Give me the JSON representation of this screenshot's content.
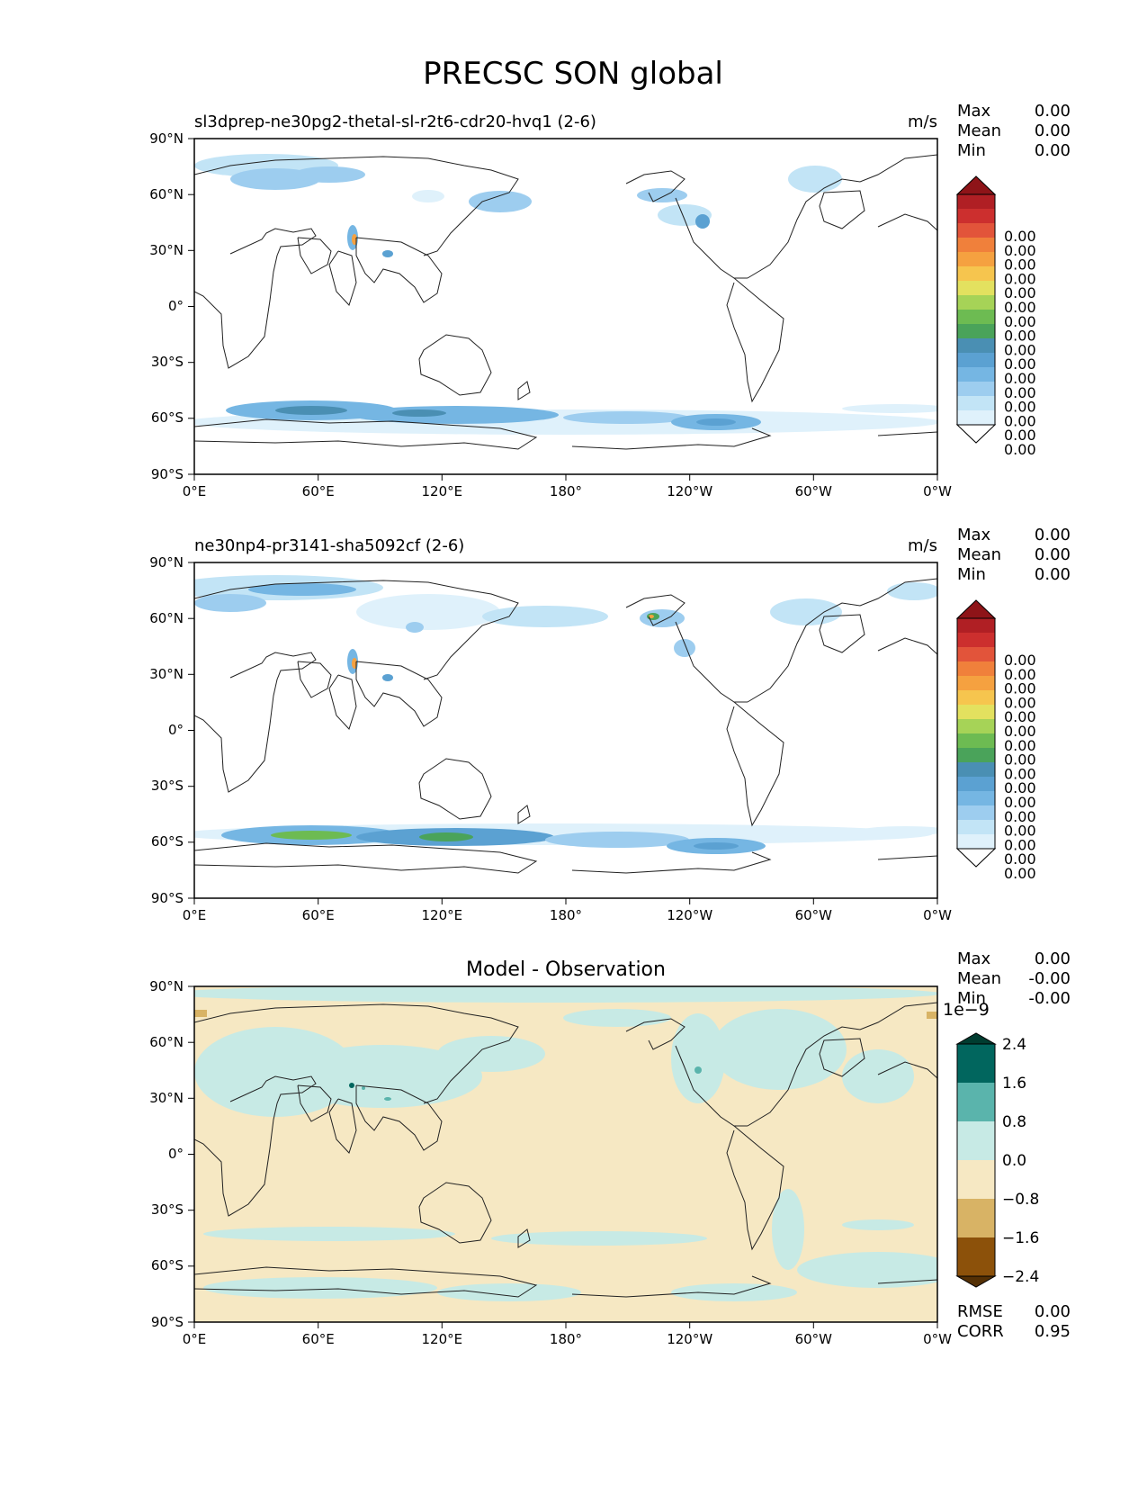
{
  "figure": {
    "title": "PRECSC SON global"
  },
  "axes": {
    "y_ticks": [
      "90°N",
      "60°N",
      "30°N",
      "0°",
      "30°S",
      "60°S",
      "90°S"
    ],
    "x_ticks": [
      "0°E",
      "60°E",
      "120°E",
      "180°",
      "120°W",
      "60°W",
      "0°W"
    ]
  },
  "panels": [
    {
      "id": "test",
      "left_title": "sl3dprep-ne30pg2-thetal-sl-r2t6-cdr20-hvq1 (2-6)",
      "center_title": "",
      "units": "m/s",
      "stats": [
        {
          "label": "Max",
          "value": "0.00"
        },
        {
          "label": "Mean",
          "value": "0.00"
        },
        {
          "label": "Min",
          "value": "0.00"
        }
      ],
      "colorbar": {
        "labels": [
          "0.00",
          "0.00",
          "0.00",
          "0.00",
          "0.00",
          "0.00",
          "0.00",
          "0.00",
          "0.00",
          "0.00",
          "0.00",
          "0.00",
          "0.00",
          "0.00",
          "0.00",
          "0.00"
        ],
        "colors": [
          "#ffffff",
          "#dff1fb",
          "#c2e4f6",
          "#9dcdef",
          "#75b6e3",
          "#5ba1d2",
          "#4a8fb3",
          "#4aa35a",
          "#6dbb52",
          "#a6d357",
          "#e3e15f",
          "#f6c54e",
          "#f5a140",
          "#f0803b",
          "#e2543a",
          "#cc2f2e",
          "#b01f24",
          "#8e1418"
        ]
      }
    },
    {
      "id": "reference",
      "left_title": "ne30np4-pr3141-sha5092cf (2-6)",
      "center_title": "",
      "units": "m/s",
      "stats": [
        {
          "label": "Max",
          "value": "0.00"
        },
        {
          "label": "Mean",
          "value": "0.00"
        },
        {
          "label": "Min",
          "value": "0.00"
        }
      ],
      "colorbar": {
        "labels": [
          "0.00",
          "0.00",
          "0.00",
          "0.00",
          "0.00",
          "0.00",
          "0.00",
          "0.00",
          "0.00",
          "0.00",
          "0.00",
          "0.00",
          "0.00",
          "0.00",
          "0.00",
          "0.00"
        ],
        "colors": [
          "#ffffff",
          "#dff1fb",
          "#c2e4f6",
          "#9dcdef",
          "#75b6e3",
          "#5ba1d2",
          "#4a8fb3",
          "#4aa35a",
          "#6dbb52",
          "#a6d357",
          "#e3e15f",
          "#f6c54e",
          "#f5a140",
          "#f0803b",
          "#e2543a",
          "#cc2f2e",
          "#b01f24",
          "#8e1418"
        ]
      }
    },
    {
      "id": "difference",
      "left_title": "",
      "center_title": "Model - Observation",
      "units": "",
      "stats": [
        {
          "label": "Max",
          "value": "0.00"
        },
        {
          "label": "Mean",
          "value": "-0.00"
        },
        {
          "label": "Min",
          "value": "-0.00"
        }
      ],
      "colorbar": {
        "scale_label": "1e−9",
        "labels": [
          "2.4",
          "1.6",
          "0.8",
          "0.0",
          "−0.8",
          "−1.6",
          "−2.4"
        ],
        "colors": [
          "#01665e",
          "#5ab4ac",
          "#c7eae5",
          "#f6e8c3",
          "#d8b365",
          "#8c510a"
        ],
        "extend_top": "#003c30",
        "extend_bottom": "#543005"
      },
      "bottom_stats": [
        {
          "label": "RMSE",
          "value": "0.00"
        },
        {
          "label": "CORR",
          "value": "0.95"
        }
      ]
    }
  ]
}
